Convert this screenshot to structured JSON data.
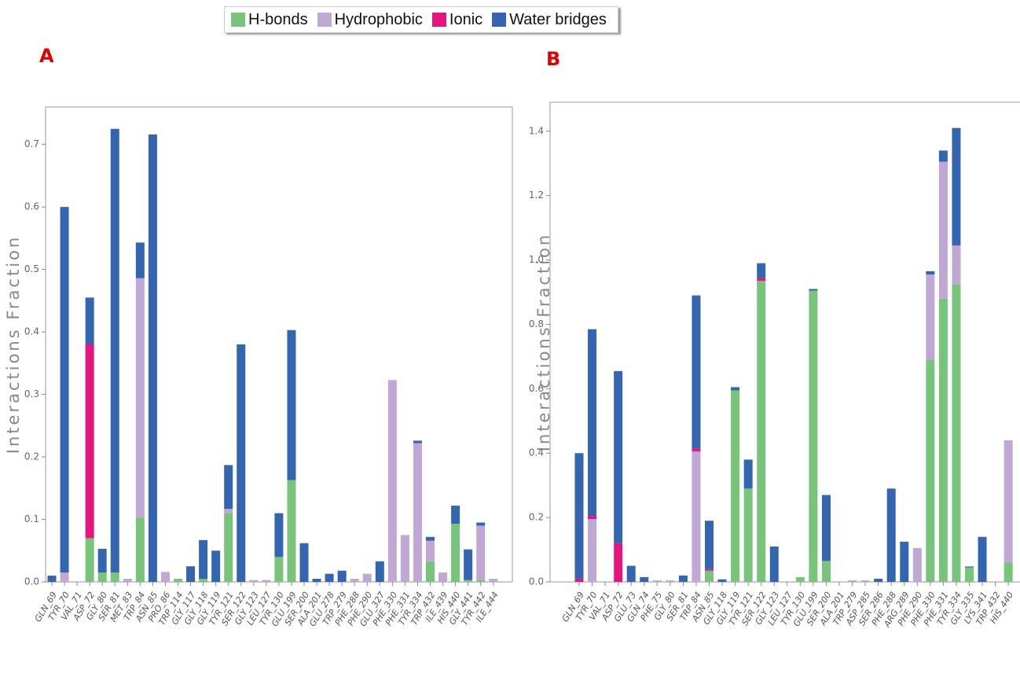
{
  "chart_data": [
    {
      "type": "bar",
      "stacked": true,
      "panel": "A",
      "ylabel": "Interactions Fraction",
      "categories": [
        "GLN_69",
        "TYR_70",
        "VAL_71",
        "ASP_72",
        "GLY_80",
        "SER_81",
        "MET_83",
        "TRP_84",
        "ASN_85",
        "PRO_86",
        "TRP_114",
        "GLY_117",
        "GLY_118",
        "GLY_119",
        "TYR_121",
        "SER_122",
        "GLY_123",
        "LEU_127",
        "TYR_130",
        "GLU_199",
        "SER_200",
        "ALA_201",
        "GLU_278",
        "TRP_279",
        "PHE_288",
        "PHE_290",
        "GLU_327",
        "PHE_330",
        "PHE_331",
        "TYR_334",
        "TRP_432",
        "ILE_439",
        "HIS_440",
        "GLY_441",
        "TYR_442",
        "ILE_444"
      ],
      "series": [
        {
          "name": "H-bonds",
          "color": "#77c47a",
          "values": [
            0,
            0,
            0,
            0.07,
            0.015,
            0.015,
            0,
            0.103,
            0,
            0,
            0.005,
            0,
            0.005,
            0,
            0.11,
            0,
            0,
            0,
            0.04,
            0.163,
            0,
            0,
            0,
            0,
            0,
            0,
            0,
            0,
            0,
            0,
            0.033,
            0,
            0.093,
            0.003,
            0.003,
            0
          ]
        },
        {
          "name": "Hydrophobic",
          "color": "#bfa8d4",
          "values": [
            0,
            0.015,
            0,
            0,
            0,
            0,
            0.005,
            0.383,
            0,
            0.016,
            0,
            0,
            0,
            0,
            0.007,
            0,
            0.003,
            0.003,
            0,
            0,
            0,
            0,
            0,
            0,
            0.005,
            0.013,
            0,
            0.323,
            0.075,
            0.222,
            0.033,
            0.015,
            0,
            0,
            0.087,
            0.005
          ]
        },
        {
          "name": "Ionic",
          "color": "#e5157f",
          "values": [
            0,
            0,
            0,
            0.31,
            0,
            0,
            0,
            0,
            0,
            0,
            0,
            0,
            0,
            0,
            0,
            0,
            0,
            0,
            0,
            0,
            0,
            0,
            0,
            0,
            0,
            0,
            0,
            0,
            0,
            0,
            0,
            0,
            0,
            0,
            0,
            0
          ]
        },
        {
          "name": "Water bridges",
          "color": "#3465b0",
          "values": [
            0.01,
            0.585,
            0,
            0.075,
            0.038,
            0.71,
            0,
            0.057,
            0.716,
            0,
            0,
            0.025,
            0.062,
            0.05,
            0.07,
            0.38,
            0,
            0,
            0.07,
            0.24,
            0.062,
            0.005,
            0.013,
            0.018,
            0,
            0,
            0.033,
            0,
            0,
            0.004,
            0.006,
            0,
            0.029,
            0.049,
            0.005,
            0
          ]
        }
      ],
      "ylim": [
        0,
        0.76
      ],
      "yticks": [
        {
          "value": 0,
          "label": "0.0"
        },
        0.1,
        0.2,
        0.3,
        0.4,
        0.5,
        0.6,
        0.7
      ]
    },
    {
      "type": "bar",
      "stacked": true,
      "panel": "B",
      "ylabel": "Interactions Fraction",
      "categories": [
        "GLN_69",
        "TYR_70",
        "VAL_71",
        "ASP_72",
        "GLU_73",
        "GLN_74",
        "PHE_75",
        "GLY_80",
        "SER_81",
        "TRP_84",
        "ASN_85",
        "GLY_118",
        "GLY_119",
        "TYR_121",
        "SER_122",
        "GLY_123",
        "LEU_127",
        "TYR_130",
        "GLU_199",
        "SER_200",
        "ALA_201",
        "TRP_279",
        "ASP_285",
        "SER_286",
        "PHE_288",
        "ARG_289",
        "PHE_290",
        "PHE_330",
        "PHE_331",
        "TYR_334",
        "GLY_335",
        "LYS_341",
        "TRP_432",
        "HIS_440"
      ],
      "series": [
        {
          "color": "#77c47a",
          "values": [
            0,
            0,
            0,
            0,
            0,
            0,
            0,
            0,
            0,
            0,
            0.035,
            0,
            0.595,
            0.29,
            0.935,
            0,
            0,
            0.015,
            0.905,
            0.065,
            0,
            0,
            0,
            0,
            0,
            0,
            0,
            0.69,
            0.88,
            0.925,
            0.045,
            0,
            0,
            0.06
          ]
        },
        {
          "color": "#bfa8d4",
          "values": [
            0,
            0.195,
            0,
            0,
            0,
            0,
            0.005,
            0.005,
            0,
            0.405,
            0,
            0,
            0,
            0,
            0,
            0,
            0,
            0,
            0,
            0,
            0,
            0.005,
            0.005,
            0,
            0,
            0,
            0.105,
            0.265,
            0.425,
            0.12,
            0,
            0,
            0,
            0.38
          ]
        },
        {
          "color": "#e5157f",
          "values": [
            0.01,
            0.01,
            0,
            0.12,
            0,
            0,
            0,
            0,
            0,
            0.01,
            0.005,
            0,
            0,
            0,
            0.01,
            0,
            0,
            0,
            0,
            0,
            0,
            0,
            0,
            0,
            0,
            0,
            0,
            0,
            0,
            0,
            0,
            0,
            0,
            0
          ]
        },
        {
          "color": "#3465b0",
          "values": [
            0.39,
            0.58,
            0,
            0.535,
            0.05,
            0.015,
            0,
            0,
            0.02,
            0.475,
            0.15,
            0.008,
            0.01,
            0.09,
            0.045,
            0.11,
            0,
            0,
            0.005,
            0.205,
            0,
            0,
            0,
            0.01,
            0.29,
            0.125,
            0,
            0.01,
            0.035,
            0.365,
            0.003,
            0.14,
            0,
            0
          ]
        }
      ],
      "ylim": [
        0,
        1.49
      ],
      "yticks": [
        {
          "value": 0,
          "label": "0.0"
        },
        0.2,
        0.4,
        0.6,
        0.8,
        {
          "value": 1,
          "label": "1.0"
        },
        1.2,
        1.4
      ]
    }
  ]
}
